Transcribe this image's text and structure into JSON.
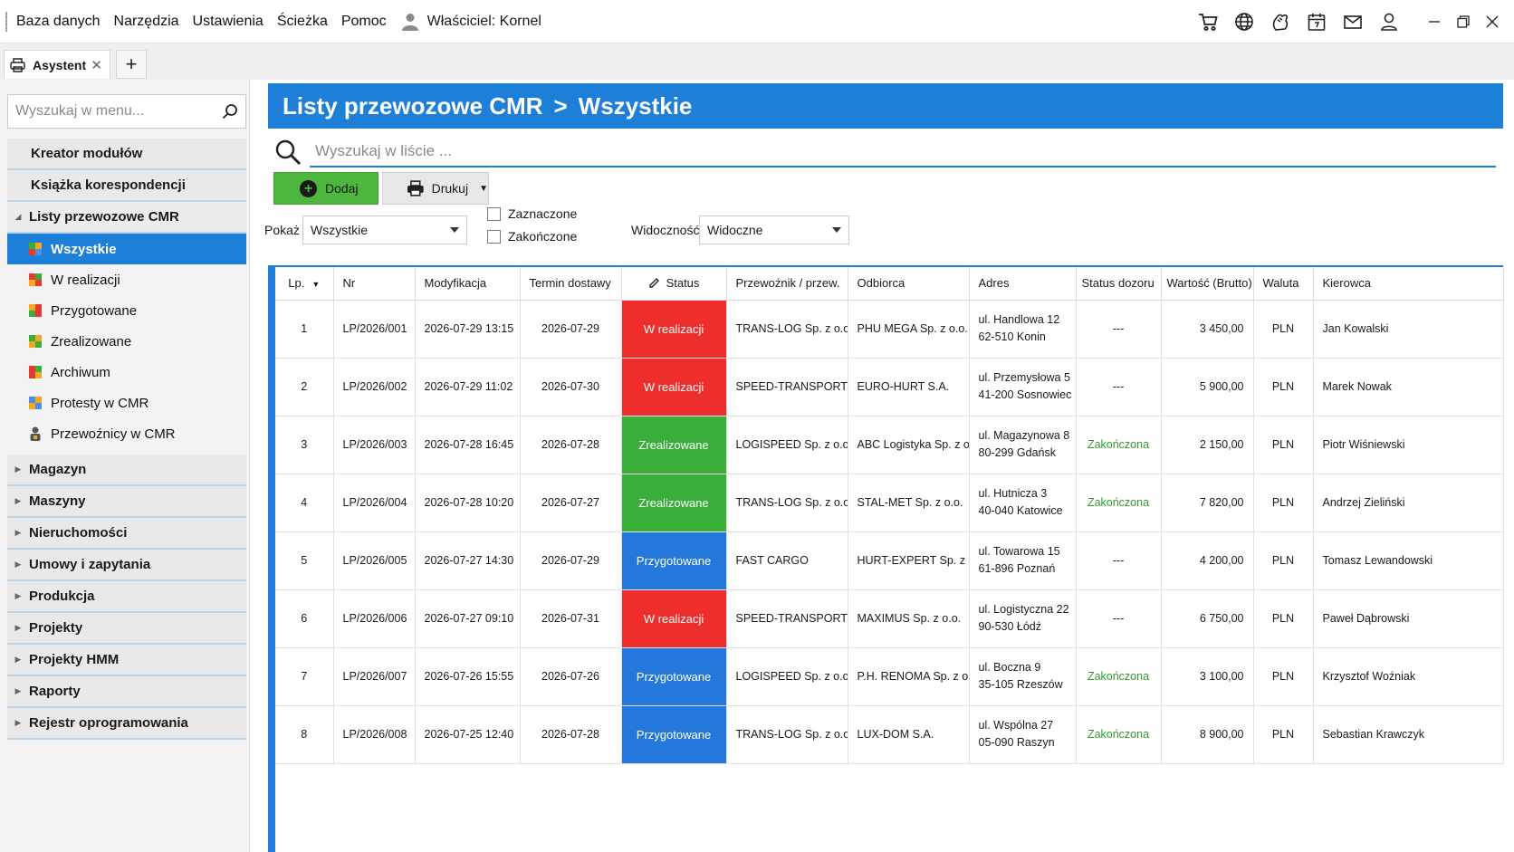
{
  "menu": {
    "items": [
      "Baza danych",
      "Narzędzia",
      "Ustawienia",
      "Ścieżka",
      "Pomoc"
    ],
    "owner_label": "Właściciel: Kornel"
  },
  "top_icons": [
    "cart-icon",
    "globe-icon",
    "power-glove-icon",
    "calendar-icon",
    "mail-icon",
    "user-icon",
    "minimize-icon",
    "restore-icon",
    "close-icon"
  ],
  "tabs": [
    {
      "label": "Asystent",
      "close": "✕"
    }
  ],
  "add_tab_label": "+",
  "sidebar": {
    "search_placeholder": "Wyszukaj w menu...",
    "groups_top": [
      {
        "label": "Kreator modułów"
      },
      {
        "label": "Książka korespondencji"
      }
    ],
    "open_group": {
      "label": "Listy przewozowe CMR",
      "items": [
        {
          "label": "Wszystkie",
          "active": true
        },
        {
          "label": "W realizacji"
        },
        {
          "label": "Przygotowane"
        },
        {
          "label": "Zrealizowane"
        },
        {
          "label": "Archiwum"
        },
        {
          "label": "Protesty w CMR"
        },
        {
          "label": "Przewoźnicy w CMR"
        }
      ]
    },
    "groups_bottom": [
      {
        "label": "Magazyn"
      },
      {
        "label": "Maszyny"
      },
      {
        "label": "Nieruchomości"
      },
      {
        "label": "Umowy i zapytania"
      },
      {
        "label": "Produkcja"
      },
      {
        "label": "Projekty"
      },
      {
        "label": "Projekty HMM"
      },
      {
        "label": "Raporty"
      },
      {
        "label": "Rejestr oprogramowania"
      }
    ]
  },
  "main": {
    "title_left": "Listy przewozowe CMR",
    "title_sep": ">",
    "title_right": "Wszystkie",
    "search_placeholder": "Wyszukaj w liście ...",
    "add_label": "Dodaj",
    "print_label": "Drukuj",
    "filters": {
      "show_label": "Pokaż",
      "show_value": "Wszystkie",
      "check_selected": "Zaznaczone",
      "check_finished": "Zakończone",
      "visibility_label": "Widoczność",
      "visibility_value": "Widoczne"
    }
  },
  "colors": {
    "accent": "#1e7fd8",
    "status_w_realizacji": "#ee2d2d",
    "status_zrealizowane": "#3aae3a",
    "status_przygotowane": "#2478db",
    "green_button": "#4cb63f"
  },
  "table": {
    "headers": {
      "lp": "Lp.",
      "nr": "Nr",
      "mod": "Modyfikacja",
      "term": "Termin dostawy",
      "status": "Status",
      "carrier": "Przewoźnik / przew.",
      "recipient": "Odbiorca",
      "address": "Adres",
      "dozor": "Status dozoru",
      "value": "Wartość (Brutto)",
      "currency": "Waluta",
      "driver": "Kierowca"
    },
    "rows": [
      {
        "lp": "1",
        "nr": "LP/2026/001",
        "mod": "2026-07-29 13:15",
        "term": "2026-07-29",
        "status": "W realizacji",
        "carrier": "TRANS-LOG Sp. z o.o.",
        "recipient": "PHU MEGA Sp. z o.o.",
        "addr1": "ul. Handlowa 12",
        "addr2": "62-510 Konin",
        "dozor": "---",
        "value": "3 450,00",
        "currency": "PLN",
        "driver": "Jan Kowalski"
      },
      {
        "lp": "2",
        "nr": "LP/2026/002",
        "mod": "2026-07-29 11:02",
        "term": "2026-07-30",
        "status": "W realizacji",
        "carrier": "SPEED-TRANSPORT",
        "recipient": "EURO-HURT S.A.",
        "addr1": "ul. Przemysłowa 5",
        "addr2": "41-200 Sosnowiec",
        "dozor": "---",
        "value": "5 900,00",
        "currency": "PLN",
        "driver": "Marek Nowak"
      },
      {
        "lp": "3",
        "nr": "LP/2026/003",
        "mod": "2026-07-28 16:45",
        "term": "2026-07-28",
        "status": "Zrealizowane",
        "carrier": "LOGISPEED Sp. z o.o.",
        "recipient": "ABC Logistyka Sp. z o.o.",
        "addr1": "ul. Magazynowa 8",
        "addr2": "80-299 Gdańsk",
        "dozor": "Zakończona",
        "value": "2 150,00",
        "currency": "PLN",
        "driver": "Piotr Wiśniewski"
      },
      {
        "lp": "4",
        "nr": "LP/2026/004",
        "mod": "2026-07-28 10:20",
        "term": "2026-07-27",
        "status": "Zrealizowane",
        "carrier": "TRANS-LOG Sp. z o.o.",
        "recipient": "STAL-MET Sp. z o.o.",
        "addr1": "ul. Hutnicza 3",
        "addr2": "40-040 Katowice",
        "dozor": "Zakończona",
        "value": "7 820,00",
        "currency": "PLN",
        "driver": "Andrzej Zieliński"
      },
      {
        "lp": "5",
        "nr": "LP/2026/005",
        "mod": "2026-07-27 14:30",
        "term": "2026-07-29",
        "status": "Przygotowane",
        "carrier": "FAST CARGO",
        "recipient": "HURT-EXPERT Sp. z o.o.",
        "addr1": "ul. Towarowa 15",
        "addr2": "61-896 Poznań",
        "dozor": "---",
        "value": "4 200,00",
        "currency": "PLN",
        "driver": "Tomasz Lewandowski"
      },
      {
        "lp": "6",
        "nr": "LP/2026/006",
        "mod": "2026-07-27 09:10",
        "term": "2026-07-31",
        "status": "W realizacji",
        "carrier": "SPEED-TRANSPORT",
        "recipient": "MAXIMUS Sp. z o.o.",
        "addr1": "ul. Logistyczna 22",
        "addr2": "90-530 Łódź",
        "dozor": "---",
        "value": "6 750,00",
        "currency": "PLN",
        "driver": "Paweł Dąbrowski"
      },
      {
        "lp": "7",
        "nr": "LP/2026/007",
        "mod": "2026-07-26 15:55",
        "term": "2026-07-26",
        "status": "Przygotowane",
        "carrier": "LOGISPEED Sp. z o.o.",
        "recipient": "P.H. RENOMA Sp. z o.o.",
        "addr1": "ul. Boczna 9",
        "addr2": "35-105 Rzeszów",
        "dozor": "Zakończona",
        "value": "3 100,00",
        "currency": "PLN",
        "driver": "Krzysztof Woźniak"
      },
      {
        "lp": "8",
        "nr": "LP/2026/008",
        "mod": "2026-07-25 12:40",
        "term": "2026-07-28",
        "status": "Przygotowane",
        "carrier": "TRANS-LOG Sp. z o.o.",
        "recipient": "LUX-DOM S.A.",
        "addr1": "ul. Wspólna 27",
        "addr2": "05-090 Raszyn",
        "dozor": "Zakończona",
        "value": "8 900,00",
        "currency": "PLN",
        "driver": "Sebastian Krawczyk"
      }
    ]
  }
}
